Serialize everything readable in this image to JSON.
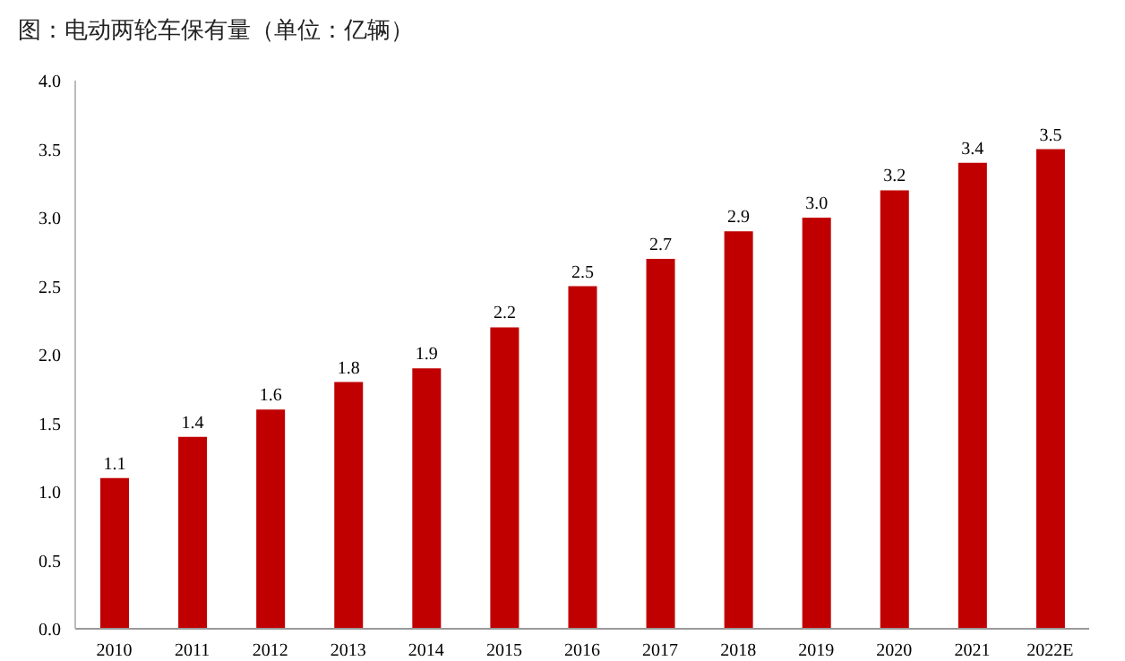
{
  "chart_data": {
    "type": "bar",
    "title": "图：电动两轮车保有量（单位：亿辆）",
    "categories": [
      "2010",
      "2011",
      "2012",
      "2013",
      "2014",
      "2015",
      "2016",
      "2017",
      "2018",
      "2019",
      "2020",
      "2021",
      "2022E"
    ],
    "values": [
      1.1,
      1.4,
      1.6,
      1.8,
      1.9,
      2.2,
      2.5,
      2.7,
      2.9,
      3.0,
      3.2,
      3.4,
      3.5
    ],
    "value_labels": [
      "1.1",
      "1.4",
      "1.6",
      "1.8",
      "1.9",
      "2.2",
      "2.5",
      "2.7",
      "2.9",
      "3.0",
      "3.2",
      "3.4",
      "3.5"
    ],
    "color": "#c00000",
    "ylim": [
      0,
      4
    ],
    "yticks": [
      {
        "value": 0,
        "label": "0.0"
      },
      {
        "value": 0.5,
        "label": "0.5"
      },
      {
        "value": 1,
        "label": "1.0"
      },
      {
        "value": 1.5,
        "label": "1.5"
      },
      {
        "value": 2,
        "label": "2.0"
      },
      {
        "value": 2.5,
        "label": "2.5"
      },
      {
        "value": 3,
        "label": "3.0"
      },
      {
        "value": 3.5,
        "label": "3.5"
      },
      {
        "value": 4,
        "label": "4.0"
      }
    ],
    "grid": false,
    "legend": false
  }
}
